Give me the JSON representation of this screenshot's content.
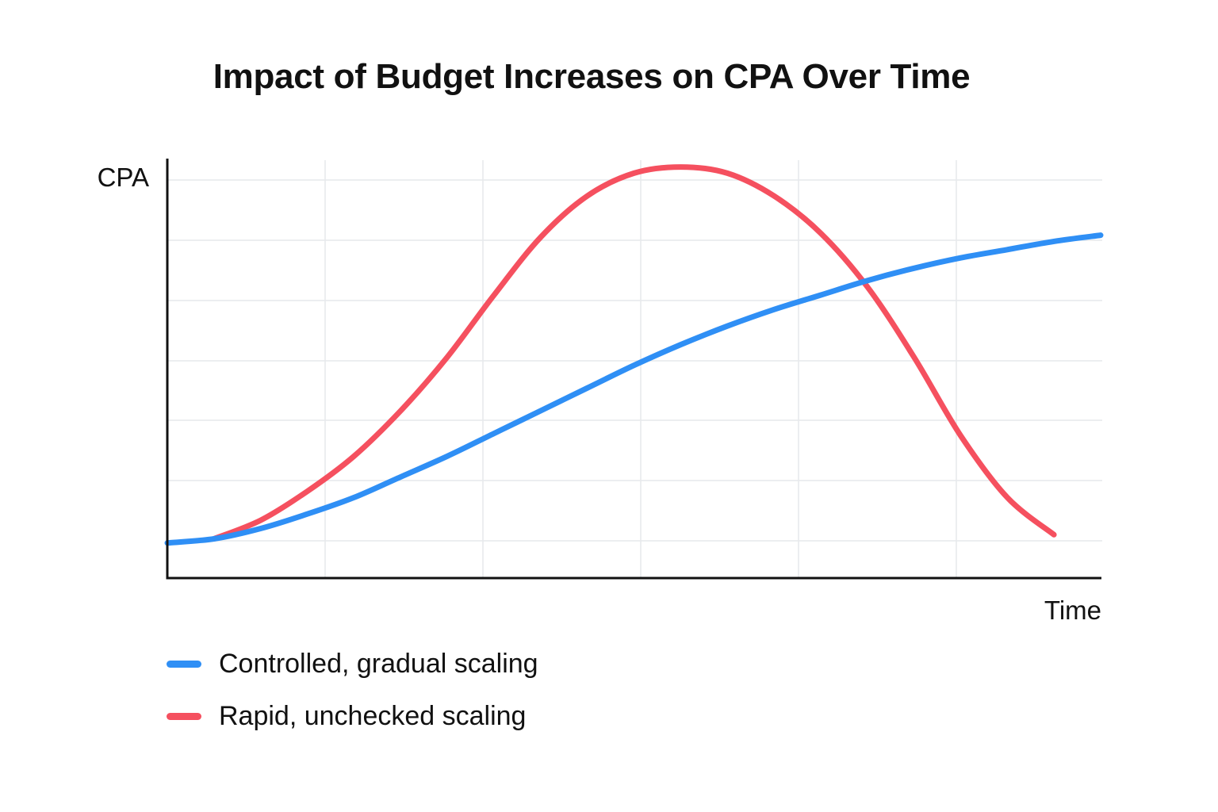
{
  "chart_data": {
    "type": "line",
    "title": "Impact of Budget Increases on CPA Over Time",
    "xlabel": "Time",
    "ylabel": "CPA",
    "grid": true,
    "legend_position": "bottom-left",
    "xlim": [
      0,
      10
    ],
    "ylim": [
      0,
      10
    ],
    "series": [
      {
        "name": "Controlled, gradual scaling",
        "color": "#2f8ff5",
        "x": [
          0,
          0.5,
          1,
          1.5,
          2,
          2.5,
          3,
          3.5,
          4,
          4.5,
          5,
          5.5,
          6,
          6.5,
          7,
          7.5,
          8,
          8.5,
          9,
          9.5,
          10
        ],
        "y": [
          0.85,
          0.95,
          1.2,
          1.55,
          1.95,
          2.45,
          2.95,
          3.5,
          4.05,
          4.6,
          5.15,
          5.65,
          6.1,
          6.5,
          6.85,
          7.2,
          7.5,
          7.75,
          7.95,
          8.15,
          8.3
        ]
      },
      {
        "name": "Rapid, unchecked scaling",
        "color": "#f5505f",
        "x": [
          0.5,
          1,
          1.5,
          2,
          2.5,
          3,
          3.5,
          4,
          4.5,
          5,
          5.5,
          6,
          6.5,
          7,
          7.5,
          8,
          8.5,
          9,
          9.5
        ],
        "y": [
          0.95,
          1.4,
          2.1,
          2.95,
          4.05,
          5.35,
          6.85,
          8.25,
          9.25,
          9.8,
          9.95,
          9.8,
          9.25,
          8.35,
          7.05,
          5.35,
          3.45,
          1.95,
          1.05
        ]
      }
    ]
  }
}
